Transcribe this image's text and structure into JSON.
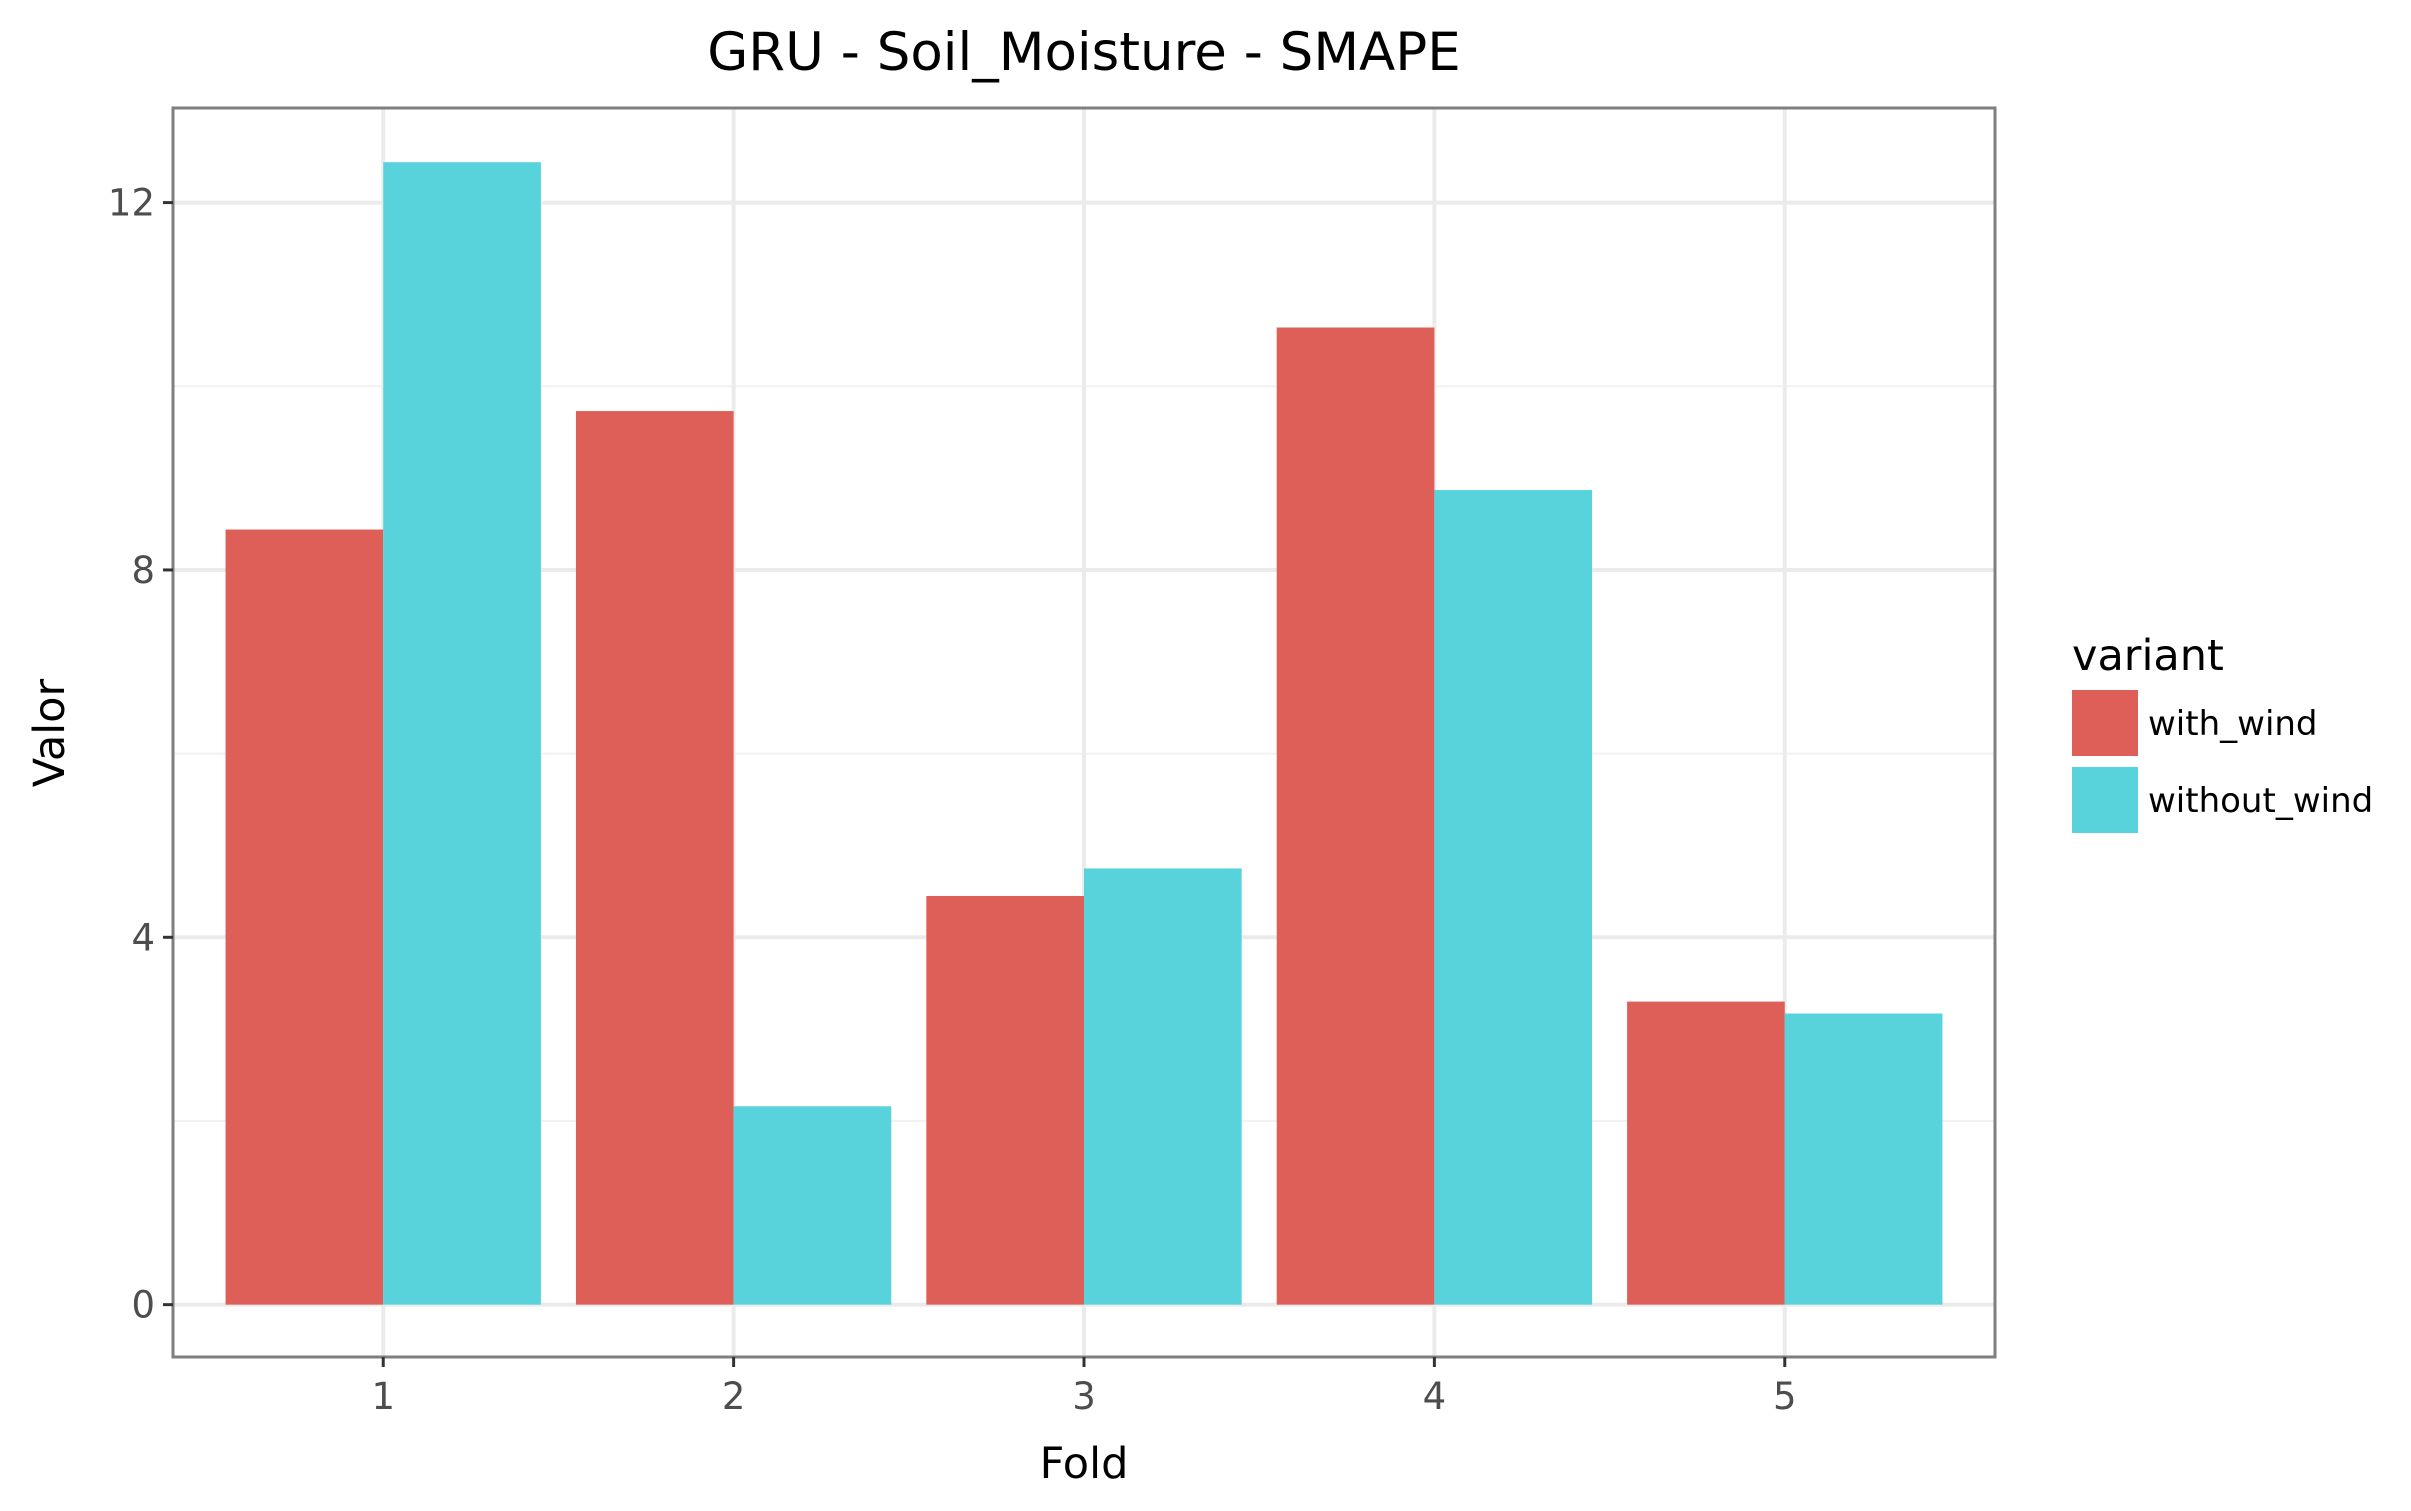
{
  "chart_data": {
    "type": "bar",
    "title": "GRU - Soil_Moisture - SMAPE",
    "xlabel": "Fold",
    "ylabel": "Valor",
    "categories": [
      "1",
      "2",
      "3",
      "4",
      "5"
    ],
    "series": [
      {
        "name": "with_wind",
        "color": "#DE5F57",
        "values": [
          8.44,
          9.73,
          4.45,
          10.64,
          3.3
        ]
      },
      {
        "name": "without_wind",
        "color": "#58D3DB",
        "values": [
          12.44,
          2.16,
          4.75,
          8.87,
          3.17
        ]
      }
    ],
    "ylim": [
      -0.57,
      13.03
    ],
    "yticks": [
      0,
      4,
      8,
      12
    ],
    "grid": true,
    "legend": {
      "title": "variant",
      "position": "right"
    }
  }
}
